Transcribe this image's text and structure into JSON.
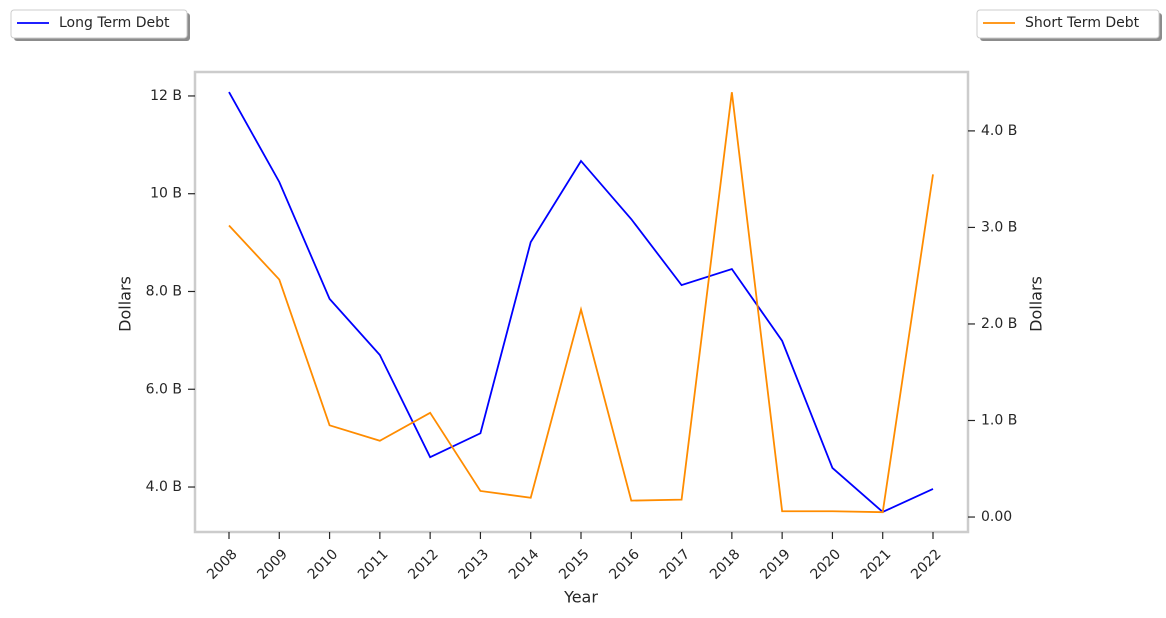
{
  "chart_data": {
    "type": "line",
    "x_label": "Year",
    "y_label": "Dollars",
    "y2_label": "Dollars",
    "categories": [
      "2008",
      "2009",
      "2010",
      "2011",
      "2012",
      "2013",
      "2014",
      "2015",
      "2016",
      "2017",
      "2018",
      "2019",
      "2020",
      "2021",
      "2022"
    ],
    "series": [
      {
        "name": "Long Term Debt",
        "color": "#0000ff",
        "axis": "y",
        "legend_loc": "upper left",
        "values": [
          12.08,
          10.24,
          7.85,
          6.7,
          4.61,
          5.1,
          9.01,
          10.67,
          9.48,
          8.13,
          8.46,
          6.99,
          4.39,
          3.49,
          3.96
        ]
      },
      {
        "name": "Short Term Debt",
        "color": "#ff8c00",
        "axis": "y2",
        "legend_loc": "upper right",
        "values": [
          3.02,
          2.46,
          0.95,
          0.79,
          1.08,
          0.27,
          0.2,
          2.15,
          0.17,
          0.18,
          4.4,
          0.06,
          0.06,
          0.05,
          3.55
        ]
      }
    ],
    "ylim": [
      3.08,
      12.49
    ],
    "yticks": [
      {
        "value": 4,
        "label": "4.0 B"
      },
      {
        "value": 6,
        "label": "6.0 B"
      },
      {
        "value": 8,
        "label": "8.0 B"
      },
      {
        "value": 10,
        "label": "10 B"
      },
      {
        "value": 12,
        "label": "12 B"
      }
    ],
    "y2lim": [
      -0.155,
      4.61
    ],
    "y2ticks": [
      {
        "value": 0,
        "label": "0.00"
      },
      {
        "value": 1,
        "label": "1.0 B"
      },
      {
        "value": 2,
        "label": "2.0 B"
      },
      {
        "value": 3,
        "label": "3.0 B"
      },
      {
        "value": 4,
        "label": "4.0 B"
      }
    ],
    "grid": false
  }
}
